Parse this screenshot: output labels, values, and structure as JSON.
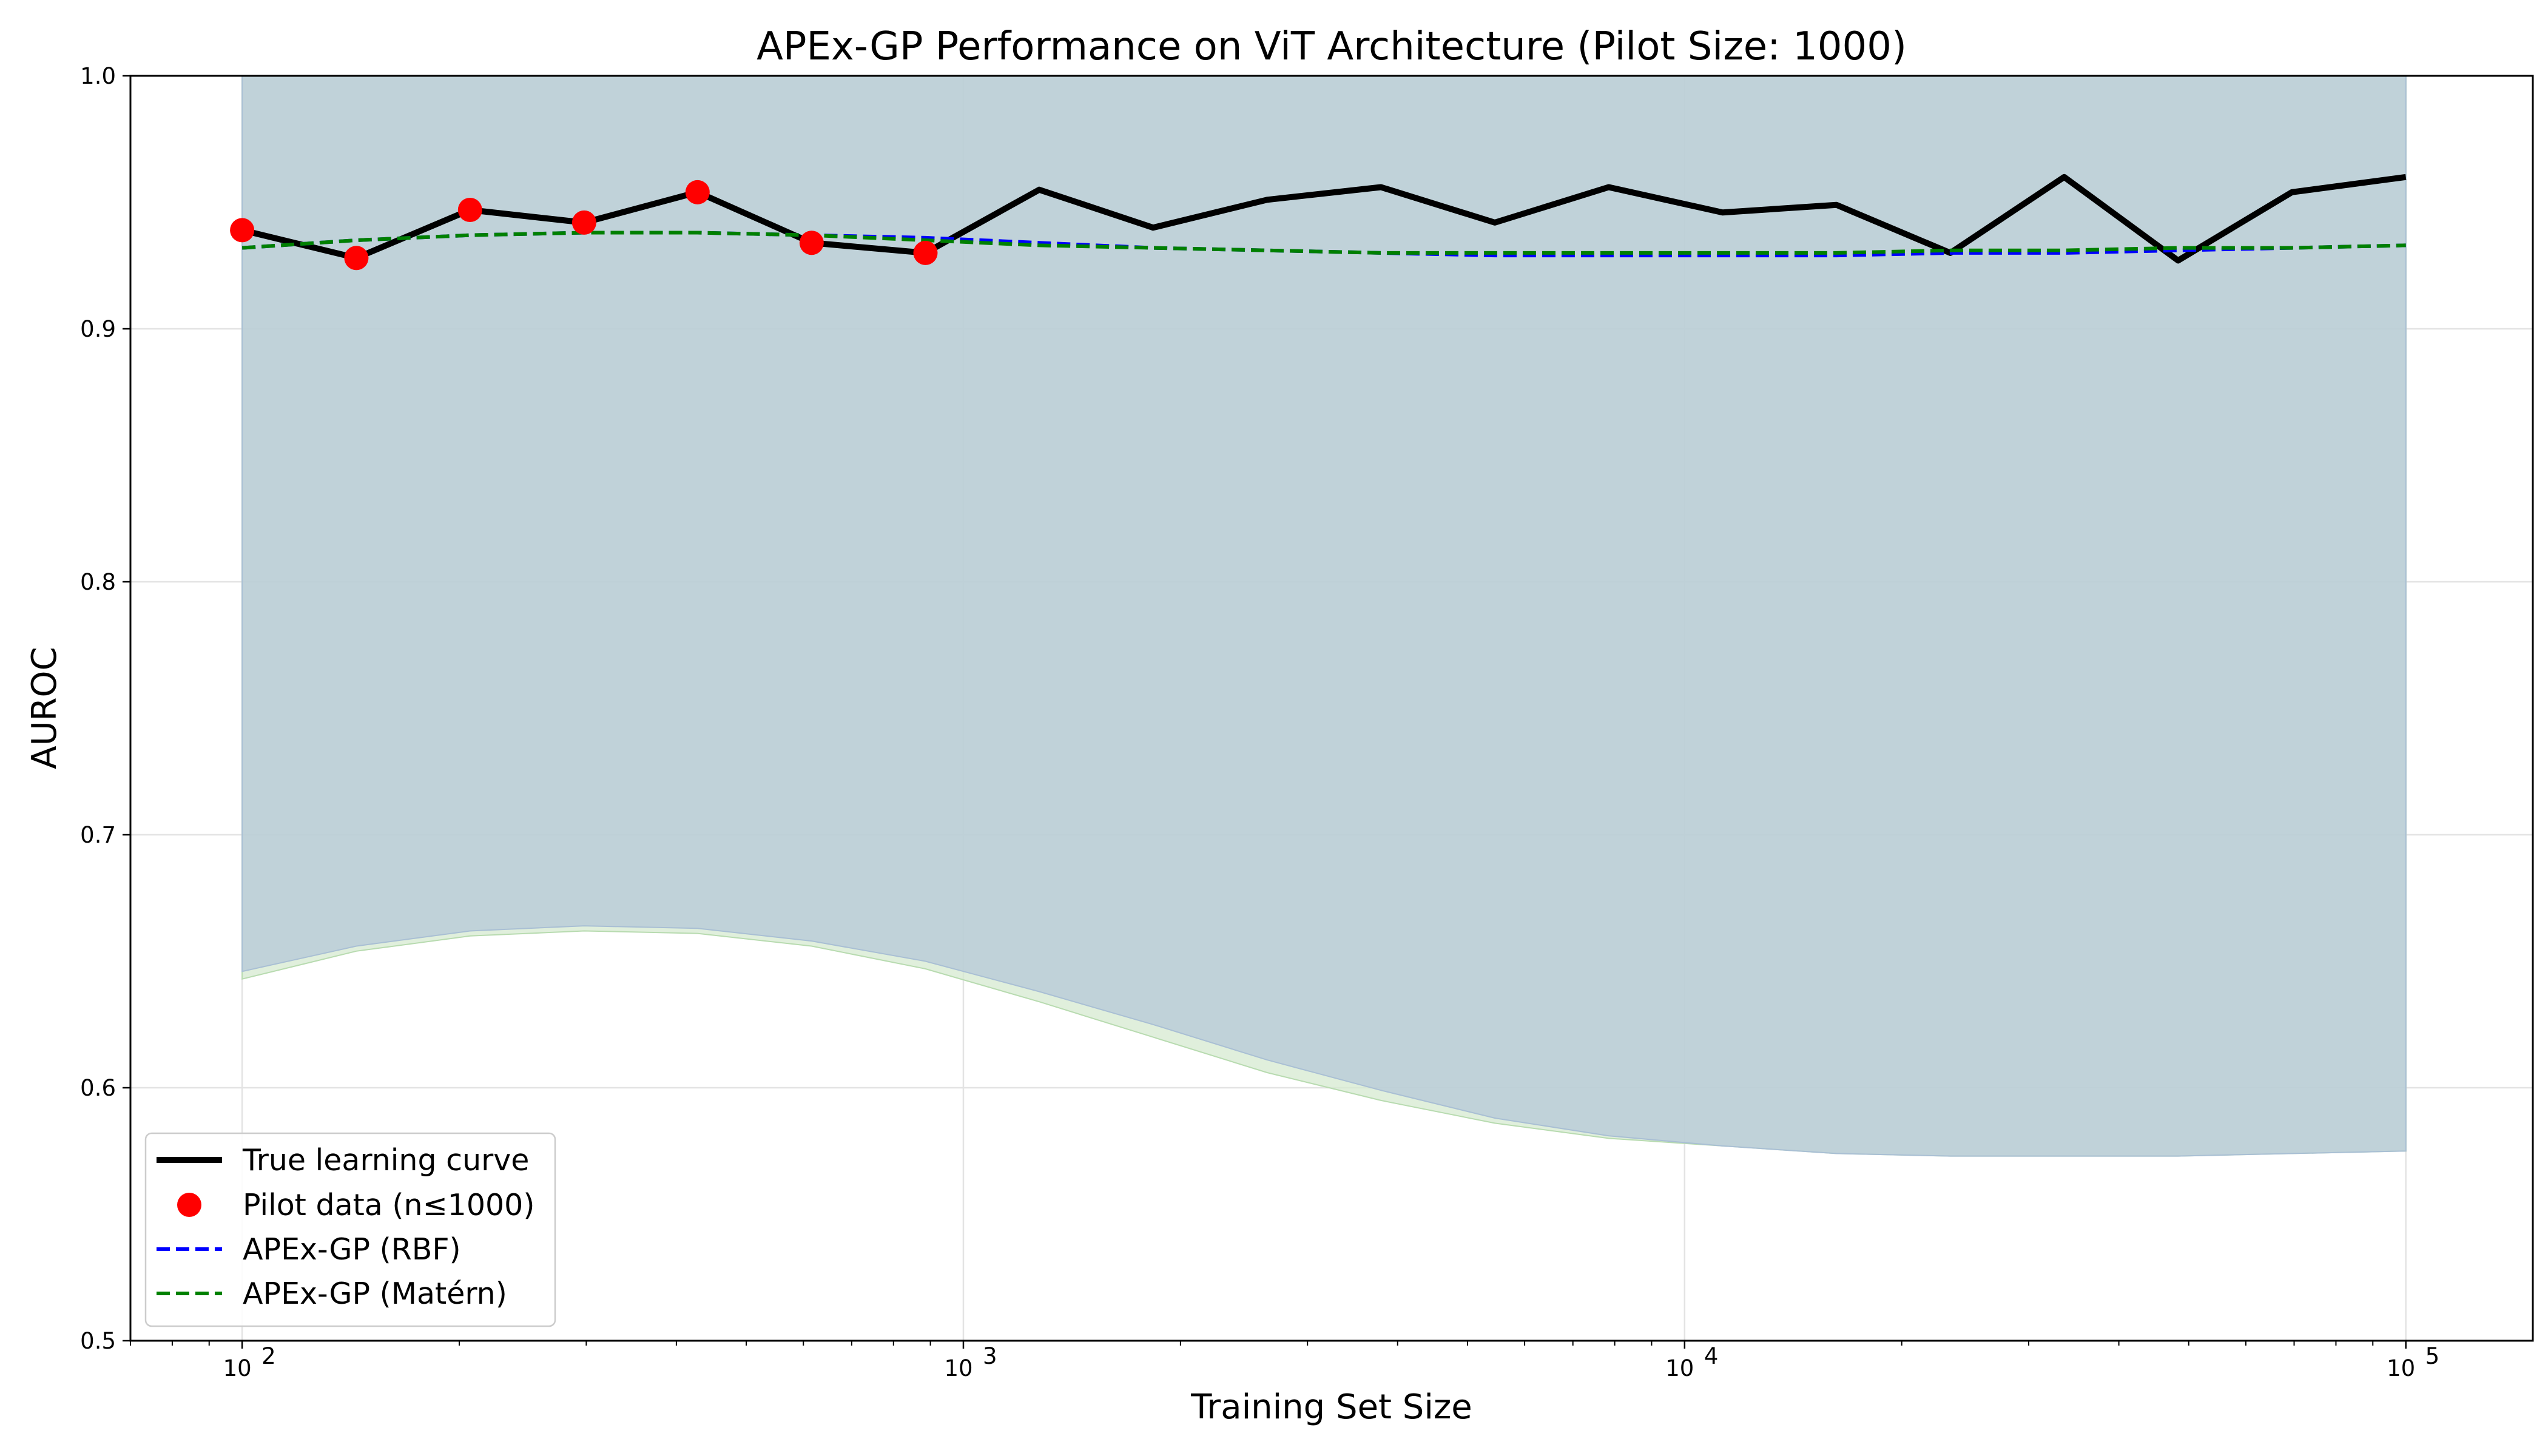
{
  "chart_data": {
    "type": "line",
    "title": "APEx-GP Performance on ViT Architecture (Pilot Size: 1000)",
    "xlabel": "Training Set Size",
    "ylabel": "AUROC",
    "x_scale": "log",
    "xlim": [
      70,
      150000
    ],
    "ylim": [
      0.5,
      1.0
    ],
    "x_ticks": [
      100,
      1000,
      10000,
      100000
    ],
    "x_tick_labels": [
      {
        "base": "10",
        "exp": "2"
      },
      {
        "base": "10",
        "exp": "3"
      },
      {
        "base": "10",
        "exp": "4"
      },
      {
        "base": "10",
        "exp": "5"
      }
    ],
    "y_ticks": [
      0.5,
      0.6,
      0.7,
      0.8,
      0.9,
      1.0
    ],
    "y_tick_labels": [
      "0.5",
      "0.6",
      "0.7",
      "0.8",
      "0.9",
      "1.0"
    ],
    "grid": true,
    "legend_position": "lower-left",
    "true_curve": {
      "name": "True learning curve",
      "color": "#000000",
      "x": [
        100,
        144,
        207,
        298,
        428,
        616,
        886,
        1274,
        1833,
        2637,
        3793,
        5456,
        7848,
        11288,
        16238,
        23357,
        33598,
        48329,
        69519,
        100000
      ],
      "y": [
        0.939,
        0.928,
        0.947,
        0.942,
        0.954,
        0.934,
        0.93,
        0.955,
        0.94,
        0.951,
        0.956,
        0.942,
        0.956,
        0.946,
        0.949,
        0.93,
        0.96,
        0.927,
        0.954,
        0.96
      ]
    },
    "pilot_data": {
      "name": "Pilot data (n≤1000)",
      "color": "#ff0000",
      "x": [
        100,
        144,
        207,
        298,
        428,
        616,
        886
      ],
      "y": [
        0.939,
        0.928,
        0.947,
        0.942,
        0.954,
        0.934,
        0.93
      ]
    },
    "gp_rbf": {
      "name": "APEx-GP (RBF)",
      "color": "#0000ff",
      "band_color": "#b3c6d8",
      "x": [
        100,
        144,
        207,
        298,
        428,
        616,
        886,
        1274,
        1833,
        2637,
        3793,
        5456,
        7848,
        11288,
        16238,
        23357,
        33598,
        48329,
        69519,
        100000
      ],
      "mean": [
        0.932,
        0.935,
        0.937,
        0.938,
        0.938,
        0.937,
        0.936,
        0.934,
        0.932,
        0.931,
        0.93,
        0.929,
        0.929,
        0.929,
        0.929,
        0.93,
        0.93,
        0.931,
        0.932,
        0.933
      ],
      "lower": [
        0.646,
        0.656,
        0.662,
        0.664,
        0.663,
        0.658,
        0.65,
        0.638,
        0.625,
        0.611,
        0.599,
        0.588,
        0.581,
        0.577,
        0.574,
        0.573,
        0.573,
        0.573,
        0.574,
        0.575
      ],
      "upper": [
        1.0,
        1.0,
        1.0,
        1.0,
        1.0,
        1.0,
        1.0,
        1.0,
        1.0,
        1.0,
        1.0,
        1.0,
        1.0,
        1.0,
        1.0,
        1.0,
        1.0,
        1.0,
        1.0,
        1.0
      ]
    },
    "gp_matern": {
      "name": "APEx-GP (Matérn)",
      "color": "#008000",
      "band_color": "#d5ead0",
      "x": [
        100,
        144,
        207,
        298,
        428,
        616,
        886,
        1274,
        1833,
        2637,
        3793,
        5456,
        7848,
        11288,
        16238,
        23357,
        33598,
        48329,
        69519,
        100000
      ],
      "mean": [
        0.932,
        0.935,
        0.937,
        0.938,
        0.938,
        0.937,
        0.935,
        0.933,
        0.932,
        0.931,
        0.93,
        0.93,
        0.93,
        0.93,
        0.93,
        0.931,
        0.931,
        0.932,
        0.932,
        0.933
      ],
      "lower": [
        0.643,
        0.654,
        0.66,
        0.662,
        0.661,
        0.656,
        0.647,
        0.634,
        0.62,
        0.606,
        0.595,
        0.586,
        0.58,
        0.577,
        0.574,
        0.573,
        0.573,
        0.573,
        0.574,
        0.575
      ],
      "upper": [
        1.0,
        1.0,
        1.0,
        1.0,
        1.0,
        1.0,
        1.0,
        1.0,
        1.0,
        1.0,
        1.0,
        1.0,
        1.0,
        1.0,
        1.0,
        1.0,
        1.0,
        1.0,
        1.0,
        1.0
      ]
    }
  }
}
